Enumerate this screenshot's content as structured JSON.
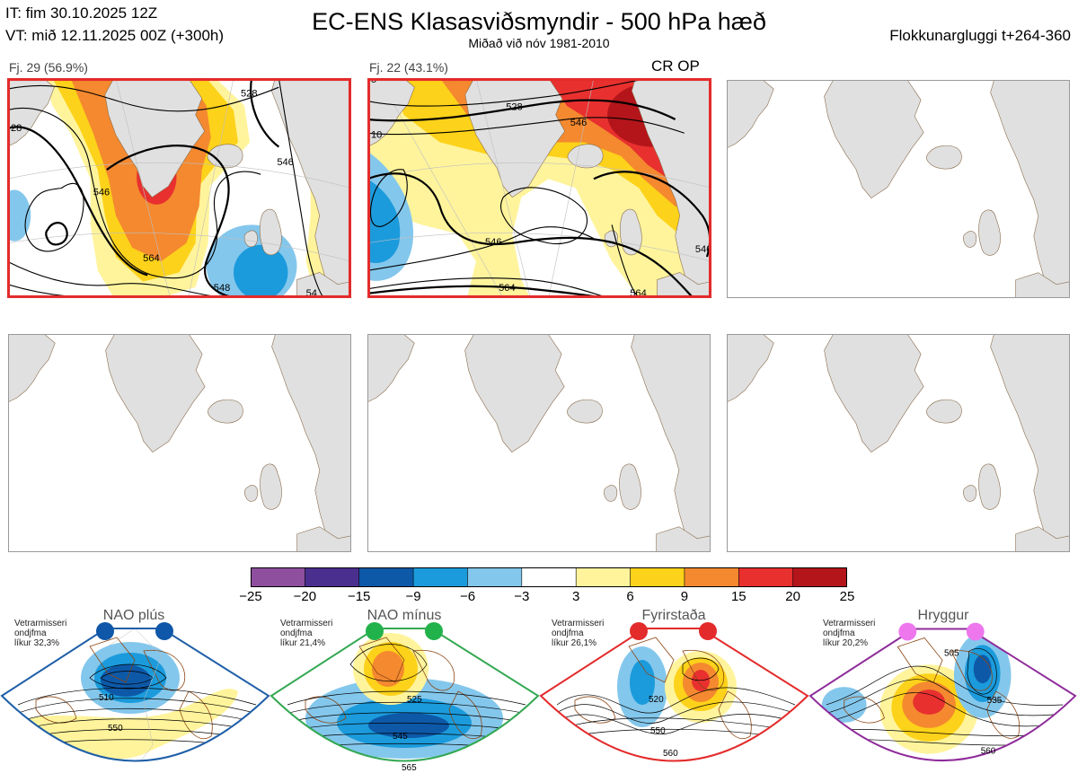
{
  "header": {
    "it_line": "IT: fim 30.10.2025 12Z",
    "vt_line": "VT: mið 12.11.2025 00Z  (+300h)",
    "title": "EC-ENS Klasasviðsmyndir - 500 hPa hæð",
    "subtitle": "Miðað við nóv 1981-2010",
    "window": "Flokkunargluggi t+264-360"
  },
  "panels": [
    {
      "label": "Fj. 29 (56.9%)",
      "highlighted": true,
      "contours": [
        {
          "label": "528",
          "value": 528
        },
        {
          "label": "546",
          "value": 546
        },
        {
          "label": "546",
          "value": 546
        },
        {
          "label": "564",
          "value": 564
        },
        {
          "label": "548",
          "value": 548
        },
        {
          "label": "54",
          "value": 54
        },
        {
          "label": "28",
          "value": 28
        }
      ]
    },
    {
      "label": "Fj. 22 (43.1%)",
      "highlighted": true,
      "op_marker": "CR OP",
      "contours": [
        {
          "label": "528",
          "value": 528
        },
        {
          "label": "546",
          "value": 546
        },
        {
          "label": "546",
          "value": 546
        },
        {
          "label": "564",
          "value": 564
        },
        {
          "label": "564",
          "value": 564
        },
        {
          "label": "546",
          "value": 546
        },
        {
          "label": "10",
          "value": 10
        },
        {
          "label": "5",
          "value": 5
        }
      ]
    },
    {
      "label": "",
      "highlighted": false,
      "contours": []
    },
    {
      "label": "",
      "highlighted": false,
      "contours": []
    },
    {
      "label": "",
      "highlighted": false,
      "contours": []
    },
    {
      "label": "",
      "highlighted": false,
      "contours": []
    }
  ],
  "colorbar": {
    "ticks": [
      "−25",
      "−20",
      "−15",
      "−9",
      "−6",
      "−3",
      "3",
      "6",
      "9",
      "15",
      "20",
      "25"
    ],
    "colors": [
      "#8e4f9e",
      "#4b2f8f",
      "#0d59a8",
      "#1b9bdc",
      "#84c7ec",
      "#ffffff",
      "#fff49c",
      "#fdd21a",
      "#f4892f",
      "#e8302f",
      "#b3151a"
    ]
  },
  "regimes": [
    {
      "name": "NAO plús",
      "note_lines": [
        "Vetrarmisseri",
        "ondjfma",
        "líkur 32,3%"
      ],
      "frame_color": "#1f5fa8",
      "dot_color": "#0f57a8",
      "contours": [
        {
          "label": "510",
          "value": 510
        },
        {
          "label": "550",
          "value": 550
        }
      ]
    },
    {
      "name": "NAO mínus",
      "note_lines": [
        "Vetrarmisseri",
        "ondjfma",
        "líkur 21,4%"
      ],
      "frame_color": "#34a853",
      "dot_color": "#22b24c",
      "contours": [
        {
          "label": "525",
          "value": 525
        },
        {
          "label": "545",
          "value": 545
        },
        {
          "label": "565",
          "value": 565
        }
      ]
    },
    {
      "name": "Fyrirstaða",
      "note_lines": [
        "Vetrarmisseri",
        "ondjfma",
        "líkur 26,1%"
      ],
      "frame_color": "#e32b2b",
      "dot_color": "#e32b2b",
      "contours": [
        {
          "label": "520",
          "value": 520
        },
        {
          "label": "550",
          "value": 550
        },
        {
          "label": "560",
          "value": 560
        }
      ]
    },
    {
      "name": "Hryggur",
      "note_lines": [
        "Vetrarmisseri",
        "ondjfma",
        "líkur 20,2%"
      ],
      "frame_color": "#8e2b9a",
      "dot_color": "#ee77ee",
      "contours": [
        {
          "label": "505",
          "value": 505
        },
        {
          "label": "535",
          "value": 535
        },
        {
          "label": "560",
          "value": 560
        }
      ]
    }
  ]
}
